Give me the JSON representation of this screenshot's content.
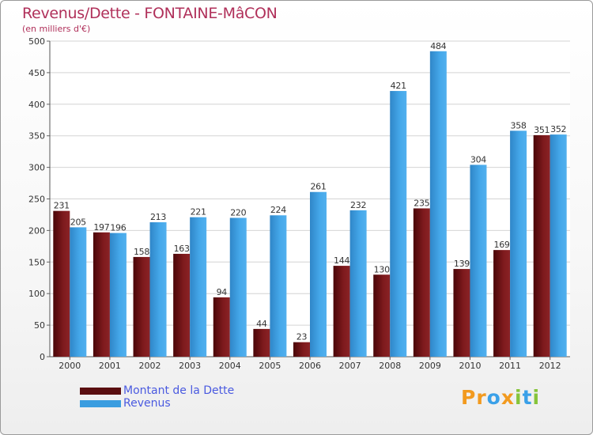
{
  "title": "Revenus/Dette - FONTAINE-MâCON",
  "subtitle": "(en milliers d'€)",
  "chart_data": {
    "type": "bar",
    "categories": [
      "2000",
      "2001",
      "2002",
      "2003",
      "2004",
      "2005",
      "2006",
      "2007",
      "2008",
      "2009",
      "2010",
      "2011",
      "2012"
    ],
    "series": [
      {
        "name": "Montant de la Dette",
        "values": [
          231,
          197,
          158,
          163,
          94,
          44,
          23,
          144,
          130,
          235,
          139,
          169,
          351
        ],
        "color": "#7a1518"
      },
      {
        "name": "Revenus",
        "values": [
          205,
          196,
          213,
          221,
          220,
          224,
          261,
          232,
          421,
          484,
          304,
          358,
          352
        ],
        "color": "#3a9de0"
      }
    ],
    "yticks": [
      0,
      50,
      100,
      150,
      200,
      250,
      300,
      350,
      400,
      450,
      500
    ],
    "ylim": [
      0,
      500
    ],
    "grid": true,
    "legend_position": "bottom-left"
  },
  "legend": [
    {
      "label": "Montant de la Dette",
      "color": "#7a1518"
    },
    {
      "label": "Revenus",
      "color": "#3a9de0"
    }
  ],
  "logo": {
    "text": "Proxiti",
    "letters": [
      "P",
      "r",
      "o",
      "x",
      "i",
      "t",
      "i"
    ],
    "colors": [
      "#f29a1f",
      "#f29a1f",
      "#3aa0e8",
      "#f29a1f",
      "#86c43a",
      "#3aa0e8",
      "#86c43a"
    ]
  }
}
